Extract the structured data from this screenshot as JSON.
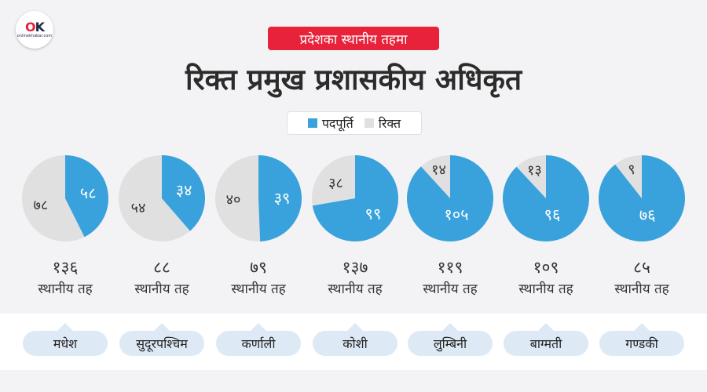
{
  "logo": {
    "mark_o": "O",
    "mark_k": "K",
    "sub": "onlinekhabar.com"
  },
  "tag": "प्रदेशका स्थानीय तहमा",
  "title": "रिक्त प्रमुख प्रशासकीय अधिकृत",
  "legend": [
    {
      "label": "पदपूर्ति",
      "color": "#39a2dc"
    },
    {
      "label": "रिक्त",
      "color": "#e0e0e0"
    }
  ],
  "colors": {
    "filled": "#39a2dc",
    "vacant": "#e0e0e0",
    "filled_text": "#ffffff",
    "vacant_text": "#333333"
  },
  "chart_data": {
    "type": "pie",
    "unit_label": "स्थानीय तह",
    "provinces": [
      {
        "name": "मधेश",
        "filled": 58,
        "vacant": 78,
        "total": 136,
        "filled_label": "५८",
        "vacant_label": "७८",
        "total_label": "१३६"
      },
      {
        "name": "सुदूरपश्चिम",
        "filled": 34,
        "vacant": 54,
        "total": 88,
        "filled_label": "३४",
        "vacant_label": "५४",
        "total_label": "८८"
      },
      {
        "name": "कर्णाली",
        "filled": 39,
        "vacant": 40,
        "total": 79,
        "filled_label": "३९",
        "vacant_label": "४०",
        "total_label": "७९"
      },
      {
        "name": "कोशी",
        "filled": 99,
        "vacant": 38,
        "total": 137,
        "filled_label": "९९",
        "vacant_label": "३८",
        "total_label": "१३७"
      },
      {
        "name": "लुम्बिनी",
        "filled": 105,
        "vacant": 14,
        "total": 119,
        "filled_label": "१०५",
        "vacant_label": "१४",
        "total_label": "११९"
      },
      {
        "name": "बाग्मती",
        "filled": 96,
        "vacant": 13,
        "total": 109,
        "filled_label": "९६",
        "vacant_label": "१३",
        "total_label": "१०९"
      },
      {
        "name": "गण्डकी",
        "filled": 76,
        "vacant": 9,
        "total": 85,
        "filled_label": "७६",
        "vacant_label": "९",
        "total_label": "८५"
      }
    ]
  }
}
